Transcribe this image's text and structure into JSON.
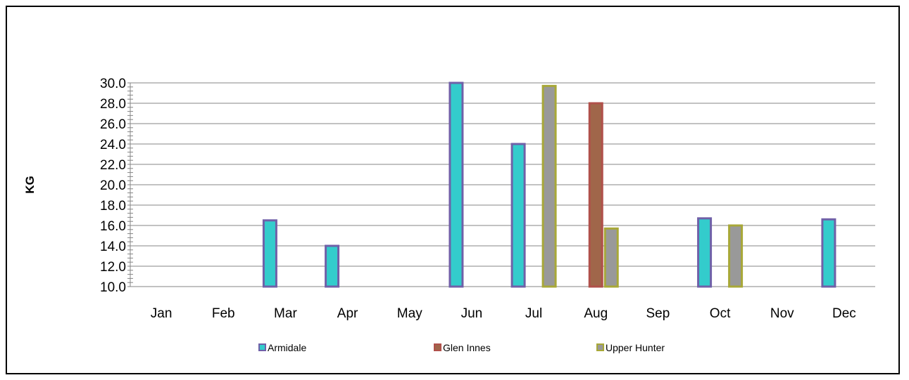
{
  "chart_data": {
    "type": "bar",
    "title": "",
    "xlabel": "",
    "ylabel": "KG",
    "ylim": [
      10,
      30
    ],
    "y_ticks": [
      "10.0",
      "12.0",
      "14.0",
      "16.0",
      "18.0",
      "20.0",
      "22.0",
      "24.0",
      "26.0",
      "28.0",
      "30.0"
    ],
    "categories": [
      "Jan",
      "Feb",
      "Mar",
      "Apr",
      "May",
      "Jun",
      "Jul",
      "Aug",
      "Sep",
      "Oct",
      "Nov",
      "Dec"
    ],
    "grid": true,
    "legend_position": "bottom",
    "series": [
      {
        "name": "Armidale",
        "fill": "#33CCCC",
        "stroke": "#7060A8",
        "values": [
          null,
          null,
          16.5,
          14.0,
          null,
          30.0,
          24.0,
          null,
          null,
          16.7,
          null,
          16.6
        ]
      },
      {
        "name": "Glen Innes",
        "fill": "#A0664A",
        "stroke": "#B0504A",
        "values": [
          null,
          null,
          null,
          null,
          null,
          null,
          null,
          28.0,
          null,
          null,
          null,
          null
        ]
      },
      {
        "name": "Upper Hunter",
        "fill": "#999999",
        "stroke": "#A8A838",
        "values": [
          null,
          null,
          null,
          null,
          null,
          null,
          29.7,
          15.7,
          null,
          16.0,
          null,
          null
        ]
      }
    ]
  }
}
